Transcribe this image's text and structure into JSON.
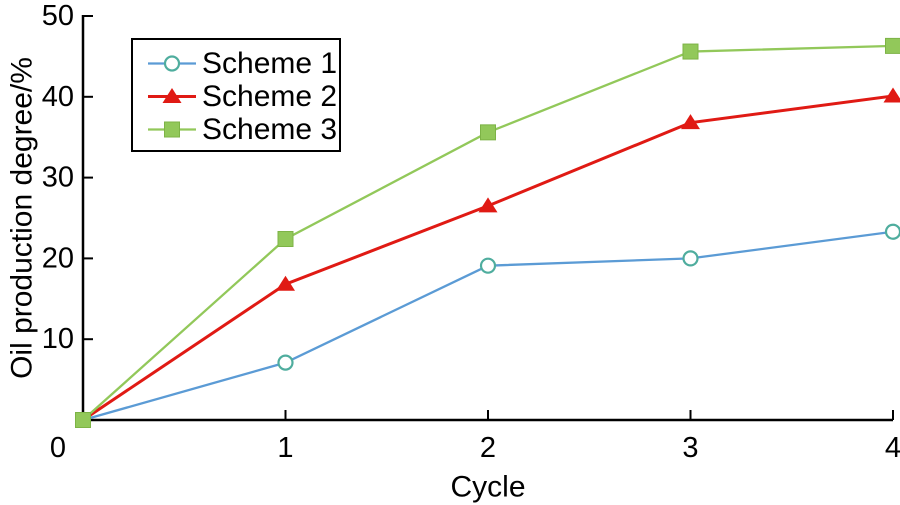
{
  "figure": {
    "background": "#ffffff",
    "axis_color": "#000000"
  },
  "chart_data": {
    "type": "line",
    "title": "",
    "xlabel": "Cycle",
    "ylabel": "Oil production degree/%",
    "x": [
      0,
      1,
      2,
      3,
      4
    ],
    "xticks": [
      0,
      1,
      2,
      3,
      4
    ],
    "yticks": [
      0,
      10,
      20,
      30,
      40,
      50
    ],
    "xlim": [
      0,
      4
    ],
    "ylim": [
      0,
      50
    ],
    "grid": false,
    "legend_position": "top-left",
    "legend_border": "#000000",
    "series": [
      {
        "name": "Scheme 1",
        "color": "#5B9BD5",
        "marker": "circle-open",
        "marker_color": "#4FAD9E",
        "marker_fill": "#ffffff",
        "line_width": 2.3,
        "values": [
          0,
          7.1,
          19.1,
          20,
          23.3
        ],
        "show_origin_marker": false
      },
      {
        "name": "Scheme 2",
        "color": "#E01A14",
        "marker": "triangle",
        "marker_color": "#E01A14",
        "marker_fill": "#E01A14",
        "line_width": 3,
        "values": [
          0,
          16.8,
          26.5,
          36.8,
          40.1
        ],
        "show_origin_marker": false
      },
      {
        "name": "Scheme 3",
        "color": "#92C85A",
        "marker": "square",
        "marker_color": "#7DB346",
        "marker_fill": "#92C85A",
        "line_width": 2.3,
        "values": [
          0,
          22.4,
          35.6,
          45.6,
          46.3
        ],
        "show_origin_marker": true
      }
    ]
  }
}
